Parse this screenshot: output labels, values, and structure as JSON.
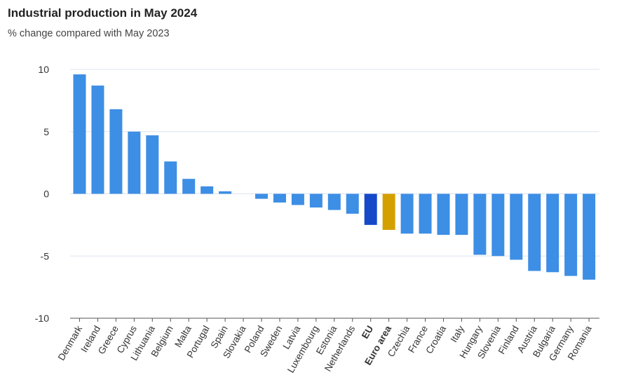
{
  "chart_data": {
    "type": "bar",
    "title": "Industrial production in May 2024",
    "subtitle": "% change compared with May 2023",
    "xlabel": "",
    "ylabel": "",
    "ylim": [
      -10,
      10
    ],
    "yticks": [
      10,
      5,
      0,
      -5,
      -10
    ],
    "grid": true,
    "categories": [
      "Denmark",
      "Ireland",
      "Greece",
      "Cyprus",
      "Lithuania",
      "Belgium",
      "Malta",
      "Portugal",
      "Spain",
      "Slovakia",
      "Poland",
      "Sweden",
      "Latvia",
      "Luxembourg",
      "Estonia",
      "Netherlands",
      "EU",
      "Euro area",
      "Czechia",
      "France",
      "Croatia",
      "Italy",
      "Hungary",
      "Slovenia",
      "Finland",
      "Austria",
      "Bulgaria",
      "Germany",
      "Romania"
    ],
    "values": [
      9.6,
      8.7,
      6.8,
      5.0,
      4.7,
      2.6,
      1.2,
      0.6,
      0.2,
      0.0,
      -0.4,
      -0.7,
      -0.9,
      -1.1,
      -1.3,
      -1.6,
      -2.5,
      -2.9,
      -3.2,
      -3.2,
      -3.3,
      -3.3,
      -4.9,
      -5.0,
      -5.3,
      -6.2,
      -6.3,
      -6.6,
      -6.9
    ],
    "bold_categories": [
      "EU",
      "Euro area"
    ],
    "colors": {
      "default": "#3d8ee5",
      "EU": "#1549c9",
      "Euro area": "#d4a000",
      "grid": "#dde3ee",
      "axis": "#555555"
    }
  }
}
